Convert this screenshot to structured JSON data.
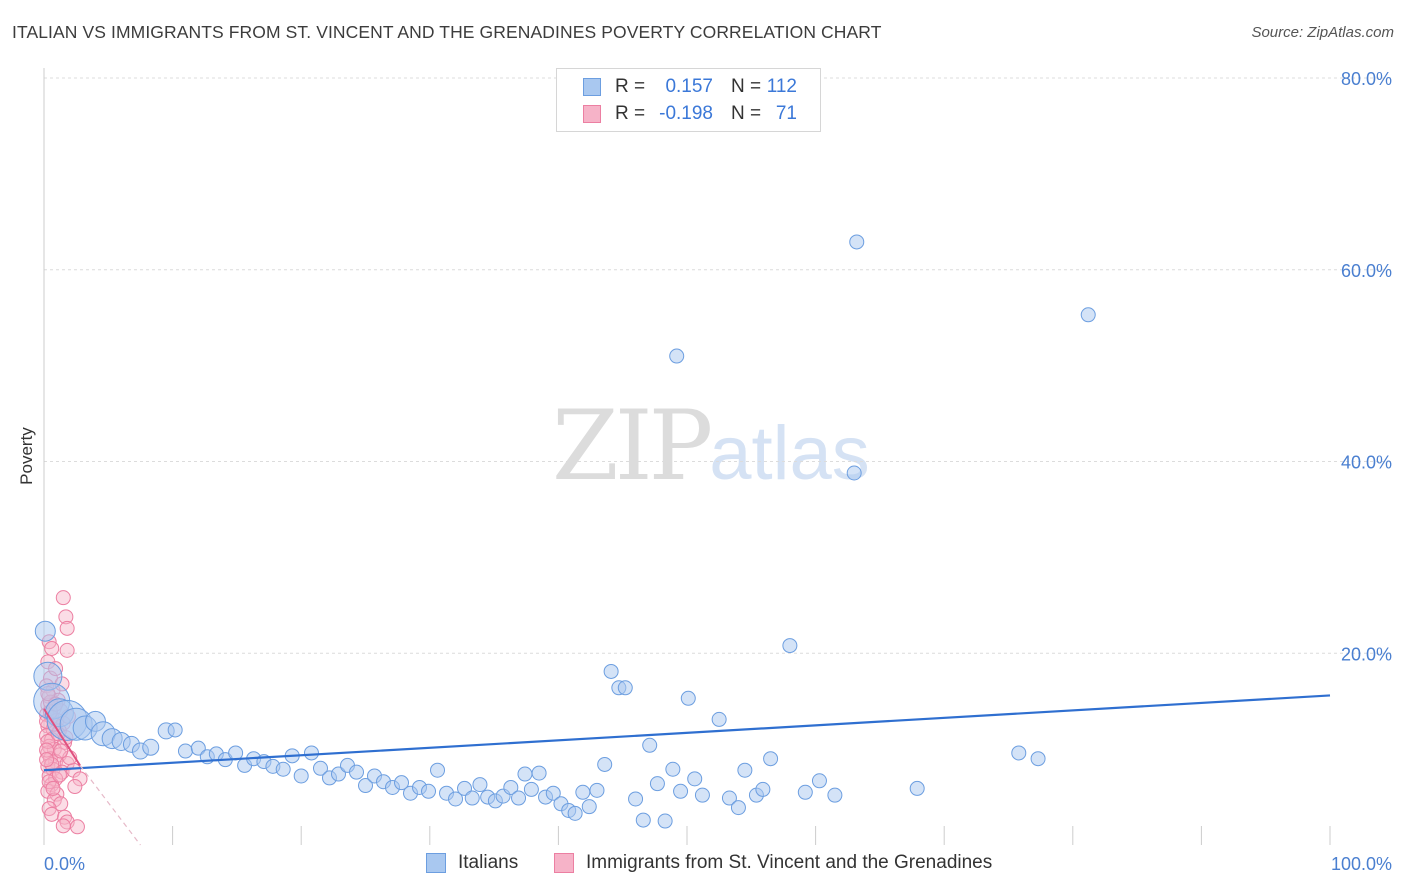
{
  "title": "ITALIAN VS IMMIGRANTS FROM ST. VINCENT AND THE GRENADINES POVERTY CORRELATION CHART",
  "source": "Source: ZipAtlas.com",
  "watermark": {
    "zip": "ZIP",
    "atlas": "atlas"
  },
  "legend": {
    "italians": {
      "r_label": "R =",
      "r_value": "0.157",
      "n_label": "N =",
      "n_value": "112"
    },
    "immigrants": {
      "r_label": "R =",
      "r_value": "-0.198",
      "n_label": "N =",
      "n_value": "71"
    }
  },
  "bottom_legend": {
    "italians": "Italians",
    "immigrants": "Immigrants from St. Vincent and the Grenadines"
  },
  "colors": {
    "blue_fill": "#a9c8f0",
    "blue_stroke": "#6c9ee0",
    "blue_line": "#2f6fd0",
    "pink_fill": "#f6b3c8",
    "pink_stroke": "#ec7fa2",
    "pink_line": "#e0507f",
    "tick_text": "#4a7fd0",
    "grid": "#dcdcdc"
  },
  "chart_data": {
    "type": "scatter",
    "title": "ITALIAN VS IMMIGRANTS FROM ST. VINCENT AND THE GRENADINES POVERTY CORRELATION CHART",
    "xlabel": "",
    "ylabel": "Poverty",
    "xlim": [
      0,
      100
    ],
    "ylim": [
      0,
      80
    ],
    "x_tick_labels": [
      "0.0%",
      "100.0%"
    ],
    "y_ticks": [
      20,
      40,
      60,
      80
    ],
    "y_tick_labels": [
      "20.0%",
      "40.0%",
      "60.0%",
      "80.0%"
    ],
    "grid": true,
    "legend_position": "top-center",
    "series": [
      {
        "name": "Italians",
        "color": "#a9c8f0",
        "trend": {
          "x": [
            0,
            100
          ],
          "y": [
            7.8,
            15.6
          ]
        },
        "points": [
          [
            0.1,
            22.3,
            10
          ],
          [
            0.3,
            17.6,
            14
          ],
          [
            0.6,
            15.0,
            18
          ],
          [
            1.2,
            13.8,
            14
          ],
          [
            1.8,
            13.0,
            20
          ],
          [
            2.5,
            12.6,
            16
          ],
          [
            3.2,
            12.2,
            12
          ],
          [
            4.0,
            12.9,
            10
          ],
          [
            4.6,
            11.6,
            12
          ],
          [
            5.3,
            11.1,
            10
          ],
          [
            6.0,
            10.8,
            9
          ],
          [
            6.8,
            10.5,
            8
          ],
          [
            7.5,
            9.8,
            8
          ],
          [
            8.3,
            10.2,
            8
          ],
          [
            9.5,
            11.9,
            8
          ],
          [
            10.2,
            12.0,
            7
          ],
          [
            11.0,
            9.8,
            7
          ],
          [
            12.0,
            10.1,
            7
          ],
          [
            12.7,
            9.2,
            7
          ],
          [
            13.4,
            9.5,
            7
          ],
          [
            14.1,
            8.9,
            7
          ],
          [
            14.9,
            9.6,
            7
          ],
          [
            15.6,
            8.3,
            7
          ],
          [
            16.3,
            9.0,
            7
          ],
          [
            17.1,
            8.7,
            7
          ],
          [
            17.8,
            8.2,
            7
          ],
          [
            18.6,
            7.9,
            7
          ],
          [
            19.3,
            9.3,
            7
          ],
          [
            20.0,
            7.2,
            7
          ],
          [
            20.8,
            9.6,
            7
          ],
          [
            21.5,
            8.0,
            7
          ],
          [
            22.2,
            7.0,
            7
          ],
          [
            22.9,
            7.4,
            7
          ],
          [
            23.6,
            8.3,
            7
          ],
          [
            24.3,
            7.6,
            7
          ],
          [
            25.0,
            6.2,
            7
          ],
          [
            25.7,
            7.2,
            7
          ],
          [
            26.4,
            6.6,
            7
          ],
          [
            27.1,
            6.0,
            7
          ],
          [
            27.8,
            6.5,
            7
          ],
          [
            28.5,
            5.4,
            7
          ],
          [
            29.2,
            6.0,
            7
          ],
          [
            29.9,
            5.6,
            7
          ],
          [
            30.6,
            7.8,
            7
          ],
          [
            31.3,
            5.4,
            7
          ],
          [
            32.0,
            4.8,
            7
          ],
          [
            32.7,
            5.9,
            7
          ],
          [
            33.3,
            4.9,
            7
          ],
          [
            33.9,
            6.3,
            7
          ],
          [
            34.5,
            5.0,
            7
          ],
          [
            35.1,
            4.6,
            7
          ],
          [
            35.7,
            5.1,
            7
          ],
          [
            36.3,
            6.0,
            7
          ],
          [
            36.9,
            4.9,
            7
          ],
          [
            37.4,
            7.4,
            7
          ],
          [
            37.9,
            5.8,
            7
          ],
          [
            38.5,
            7.5,
            7
          ],
          [
            39.0,
            5.0,
            7
          ],
          [
            39.6,
            5.4,
            7
          ],
          [
            40.2,
            4.3,
            7
          ],
          [
            40.8,
            3.6,
            7
          ],
          [
            41.3,
            3.3,
            7
          ],
          [
            41.9,
            5.5,
            7
          ],
          [
            42.4,
            4.0,
            7
          ],
          [
            43.0,
            5.7,
            7
          ],
          [
            43.6,
            8.4,
            7
          ],
          [
            44.1,
            18.1,
            7
          ],
          [
            44.7,
            16.4,
            7
          ],
          [
            45.2,
            16.4,
            7
          ],
          [
            46.0,
            4.8,
            7
          ],
          [
            46.6,
            2.6,
            7
          ],
          [
            47.1,
            10.4,
            7
          ],
          [
            47.7,
            6.4,
            7
          ],
          [
            48.3,
            2.5,
            7
          ],
          [
            48.9,
            7.9,
            7
          ],
          [
            49.5,
            5.6,
            7
          ],
          [
            50.1,
            15.3,
            7
          ],
          [
            50.6,
            6.9,
            7
          ],
          [
            51.2,
            5.2,
            7
          ],
          [
            52.5,
            13.1,
            7
          ],
          [
            53.3,
            4.9,
            7
          ],
          [
            54.0,
            3.9,
            7
          ],
          [
            54.5,
            7.8,
            7
          ],
          [
            55.4,
            5.2,
            7
          ],
          [
            55.9,
            5.8,
            7
          ],
          [
            56.5,
            9.0,
            7
          ],
          [
            58.0,
            20.8,
            7
          ],
          [
            59.2,
            5.5,
            7
          ],
          [
            60.3,
            6.7,
            7
          ],
          [
            61.5,
            5.2,
            7
          ],
          [
            63.2,
            62.9,
            7
          ],
          [
            49.2,
            51.0,
            7
          ],
          [
            63.0,
            38.8,
            7
          ],
          [
            81.2,
            55.3,
            7
          ],
          [
            75.8,
            9.6,
            7
          ],
          [
            77.3,
            9.0,
            7
          ],
          [
            67.9,
            5.9,
            7
          ]
        ]
      },
      {
        "name": "Immigrants from St. Vincent and the Grenadines",
        "color": "#f6b3c8",
        "trend": {
          "x": [
            0,
            2.8
          ],
          "y": [
            14.2,
            8.3
          ]
        },
        "trend_dashed": {
          "x": [
            2.8,
            7.5
          ],
          "y": [
            8.3,
            0
          ]
        },
        "points": [
          [
            1.5,
            25.8,
            7
          ],
          [
            1.7,
            23.8,
            7
          ],
          [
            1.8,
            22.6,
            7
          ],
          [
            0.4,
            21.2,
            7
          ],
          [
            0.6,
            20.5,
            7
          ],
          [
            1.8,
            20.3,
            7
          ],
          [
            0.3,
            19.1,
            7
          ],
          [
            0.5,
            17.4,
            7
          ],
          [
            0.2,
            16.6,
            7
          ],
          [
            0.7,
            16.1,
            7
          ],
          [
            0.4,
            15.5,
            7
          ],
          [
            1.1,
            15.1,
            7
          ],
          [
            0.3,
            14.6,
            7
          ],
          [
            0.8,
            14.3,
            7
          ],
          [
            1.3,
            14.0,
            7
          ],
          [
            0.2,
            13.6,
            7
          ],
          [
            0.6,
            13.3,
            7
          ],
          [
            1.0,
            13.0,
            7
          ],
          [
            1.5,
            12.7,
            7
          ],
          [
            0.3,
            12.4,
            7
          ],
          [
            0.7,
            12.1,
            7
          ],
          [
            1.2,
            11.9,
            7
          ],
          [
            0.2,
            11.4,
            7
          ],
          [
            0.6,
            11.0,
            7
          ],
          [
            1.6,
            10.7,
            7
          ],
          [
            0.4,
            10.3,
            7
          ],
          [
            0.8,
            10.0,
            7
          ],
          [
            0.3,
            9.6,
            7
          ],
          [
            1.2,
            9.4,
            7
          ],
          [
            0.5,
            9.0,
            7
          ],
          [
            0.9,
            8.7,
            7
          ],
          [
            1.8,
            8.5,
            7
          ],
          [
            0.3,
            8.2,
            7
          ],
          [
            0.7,
            7.9,
            7
          ],
          [
            1.4,
            7.6,
            7
          ],
          [
            2.3,
            7.8,
            7
          ],
          [
            0.4,
            7.2,
            7
          ],
          [
            0.9,
            6.9,
            7
          ],
          [
            2.8,
            6.9,
            7
          ],
          [
            0.6,
            6.3,
            7
          ],
          [
            2.4,
            6.1,
            7
          ],
          [
            0.3,
            5.6,
            7
          ],
          [
            1.0,
            5.3,
            7
          ],
          [
            0.8,
            4.7,
            7
          ],
          [
            1.3,
            4.3,
            7
          ],
          [
            0.4,
            3.8,
            7
          ],
          [
            0.6,
            3.2,
            7
          ],
          [
            1.6,
            2.9,
            7
          ],
          [
            1.8,
            2.4,
            7
          ],
          [
            1.5,
            2.0,
            7
          ],
          [
            2.6,
            1.9,
            7
          ],
          [
            0.2,
            12.9,
            7
          ],
          [
            0.5,
            14.9,
            7
          ],
          [
            1.9,
            13.4,
            7
          ],
          [
            0.3,
            10.8,
            7
          ],
          [
            1.1,
            11.6,
            7
          ],
          [
            0.2,
            9.9,
            7
          ],
          [
            0.6,
            8.4,
            7
          ],
          [
            2.0,
            9.1,
            7
          ],
          [
            0.4,
            6.6,
            7
          ],
          [
            1.2,
            7.3,
            7
          ],
          [
            0.8,
            12.6,
            7
          ],
          [
            0.3,
            15.8,
            7
          ],
          [
            1.4,
            16.8,
            7
          ],
          [
            0.9,
            18.4,
            7
          ],
          [
            0.5,
            13.9,
            7
          ],
          [
            1.7,
            11.2,
            7
          ],
          [
            0.2,
            8.9,
            7
          ],
          [
            0.7,
            5.9,
            7
          ],
          [
            1.3,
            9.8,
            7
          ],
          [
            0.9,
            14.7,
            7
          ]
        ]
      }
    ]
  }
}
